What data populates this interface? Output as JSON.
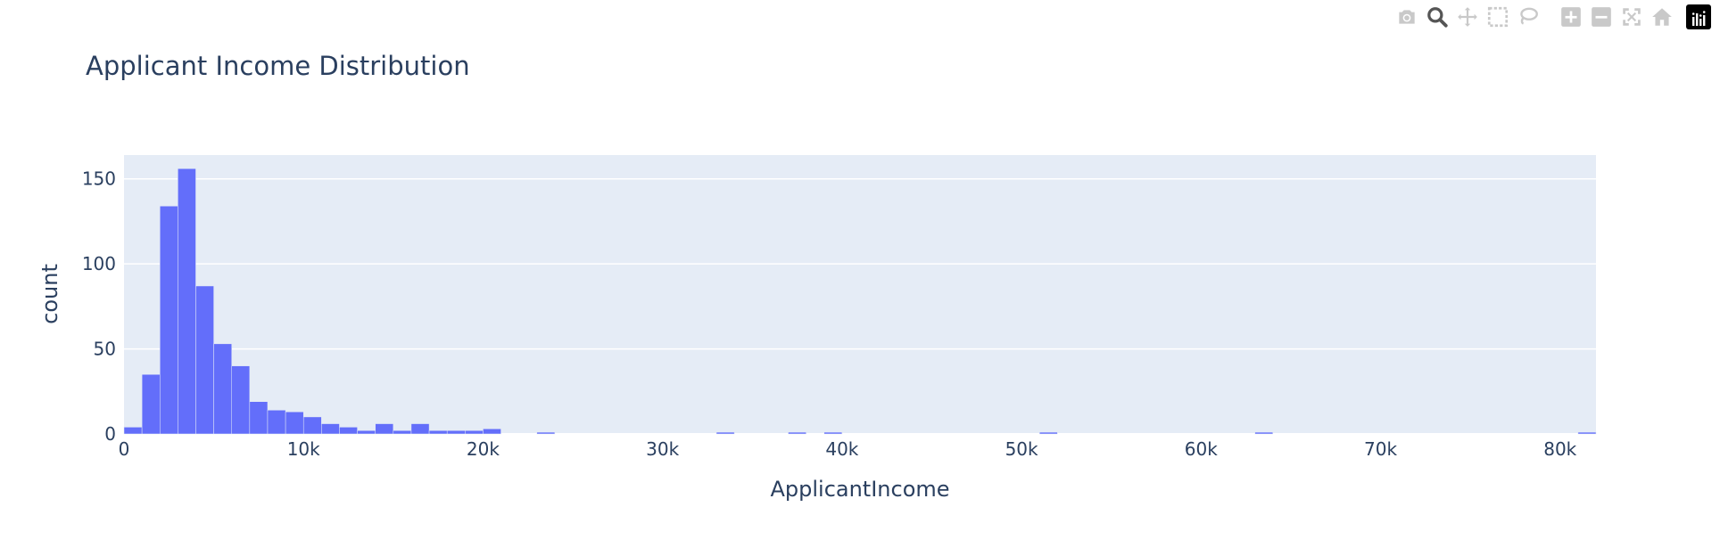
{
  "colors": {
    "bar": "#636efa",
    "plot_bg": "#e5ecf6",
    "paper_bg": "#ffffff",
    "grid": "#ffffff",
    "text": "#2a3f5f",
    "modebar_icon": "#c9c9c9",
    "modebar_active": "#555555"
  },
  "modebar": {
    "buttons": [
      {
        "name": "camera-icon",
        "active": false
      },
      {
        "name": "zoom-icon",
        "active": true
      },
      {
        "name": "pan-icon",
        "active": false
      },
      {
        "name": "box-select-icon",
        "active": false
      },
      {
        "name": "lasso-select-icon",
        "active": false
      },
      {
        "name": "zoom-in-icon",
        "active": false
      },
      {
        "name": "zoom-out-icon",
        "active": false
      },
      {
        "name": "autoscale-icon",
        "active": false
      },
      {
        "name": "reset-axes-icon",
        "active": false
      }
    ],
    "logo": "plotly-logo-icon"
  },
  "chart_data": {
    "type": "bar",
    "subtype": "histogram",
    "title": "Applicant Income Distribution",
    "xlabel": "ApplicantIncome",
    "ylabel": "count",
    "bin_width": 1000,
    "bins_start": [
      0,
      1000,
      2000,
      3000,
      4000,
      5000,
      6000,
      7000,
      8000,
      9000,
      10000,
      11000,
      12000,
      13000,
      14000,
      15000,
      16000,
      17000,
      18000,
      19000,
      20000,
      23000,
      33000,
      37000,
      39000,
      51000,
      63000,
      81000
    ],
    "values": [
      4,
      35,
      134,
      156,
      87,
      53,
      40,
      19,
      14,
      13,
      10,
      6,
      4,
      2,
      6,
      2,
      6,
      2,
      2,
      2,
      3,
      1,
      1,
      1,
      1,
      1,
      1,
      1
    ],
    "xlim": [
      0,
      82000
    ],
    "ylim": [
      0,
      164
    ],
    "xticks": [
      0,
      10000,
      20000,
      30000,
      40000,
      50000,
      60000,
      70000,
      80000
    ],
    "xtick_labels": [
      "0",
      "10k",
      "20k",
      "30k",
      "40k",
      "50k",
      "60k",
      "70k",
      "80k"
    ],
    "yticks": [
      0,
      50,
      100,
      150
    ],
    "ytick_labels": [
      "0",
      "50",
      "100",
      "150"
    ],
    "grid": true,
    "legend": false
  }
}
